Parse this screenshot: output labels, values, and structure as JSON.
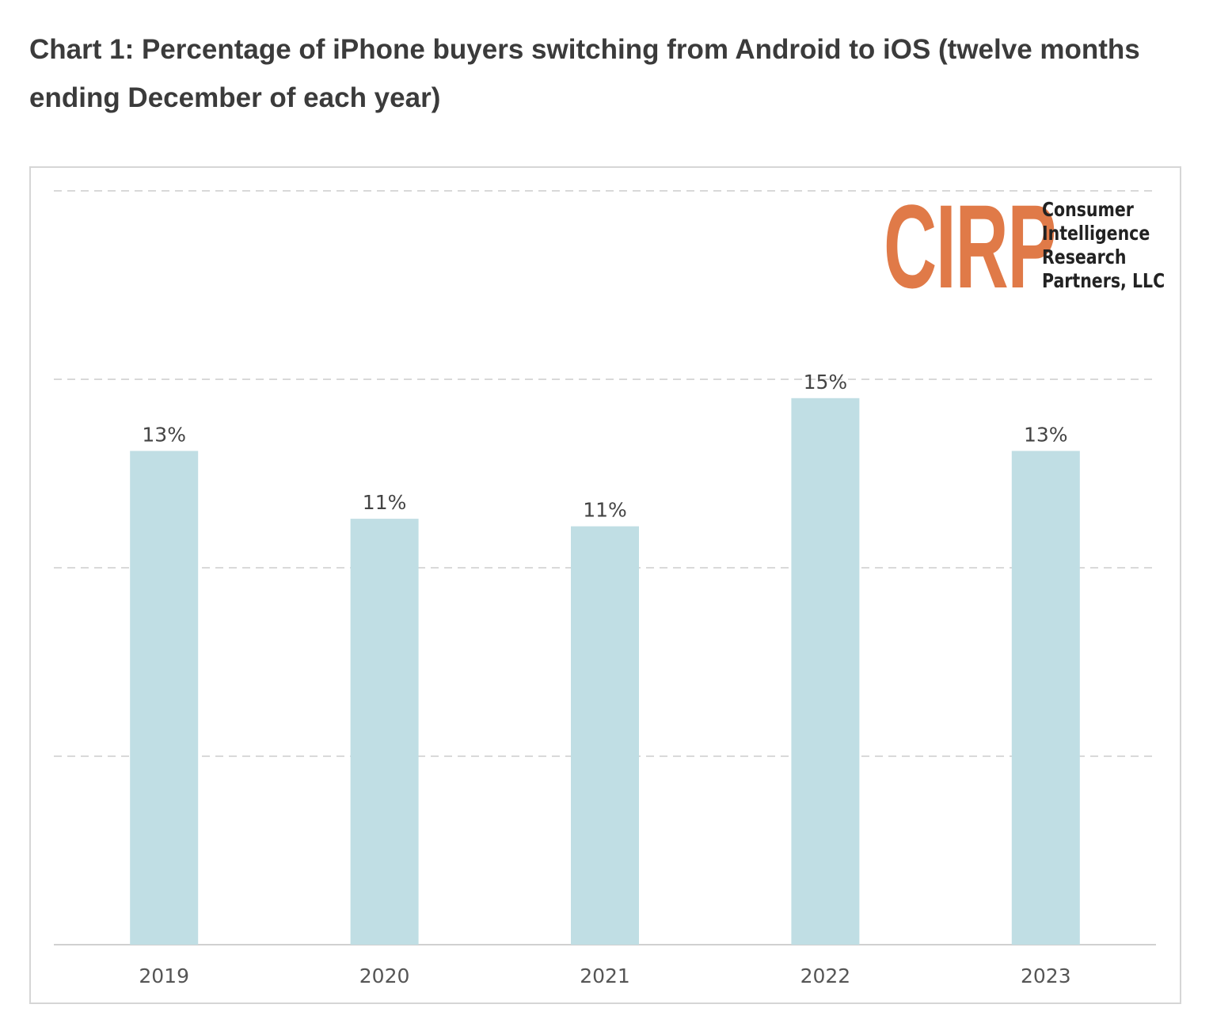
{
  "title": "Chart 1: Percentage of iPhone buyers switching from Android to iOS (twelve months ending December of each year)",
  "logo": {
    "mark": "CIRP",
    "name_lines": [
      "Consumer",
      "Intelligence",
      "Research",
      "Partners, LLC"
    ],
    "color": "#e07a48"
  },
  "chart_data": {
    "type": "bar",
    "title": "Chart 1: Percentage of iPhone buyers switching from Android to iOS (twelve months ending December of each year)",
    "categories": [
      "2019",
      "2020",
      "2021",
      "2022",
      "2023"
    ],
    "values": [
      13.1,
      11.3,
      11.1,
      14.5,
      13.1
    ],
    "data_labels": [
      "13%",
      "11%",
      "11%",
      "15%",
      "13%"
    ],
    "xlabel": "",
    "ylabel": "",
    "ylim": [
      0,
      20
    ],
    "y_axis_labels_shown": false,
    "grid": true,
    "bar_color": "#c0dee4"
  }
}
